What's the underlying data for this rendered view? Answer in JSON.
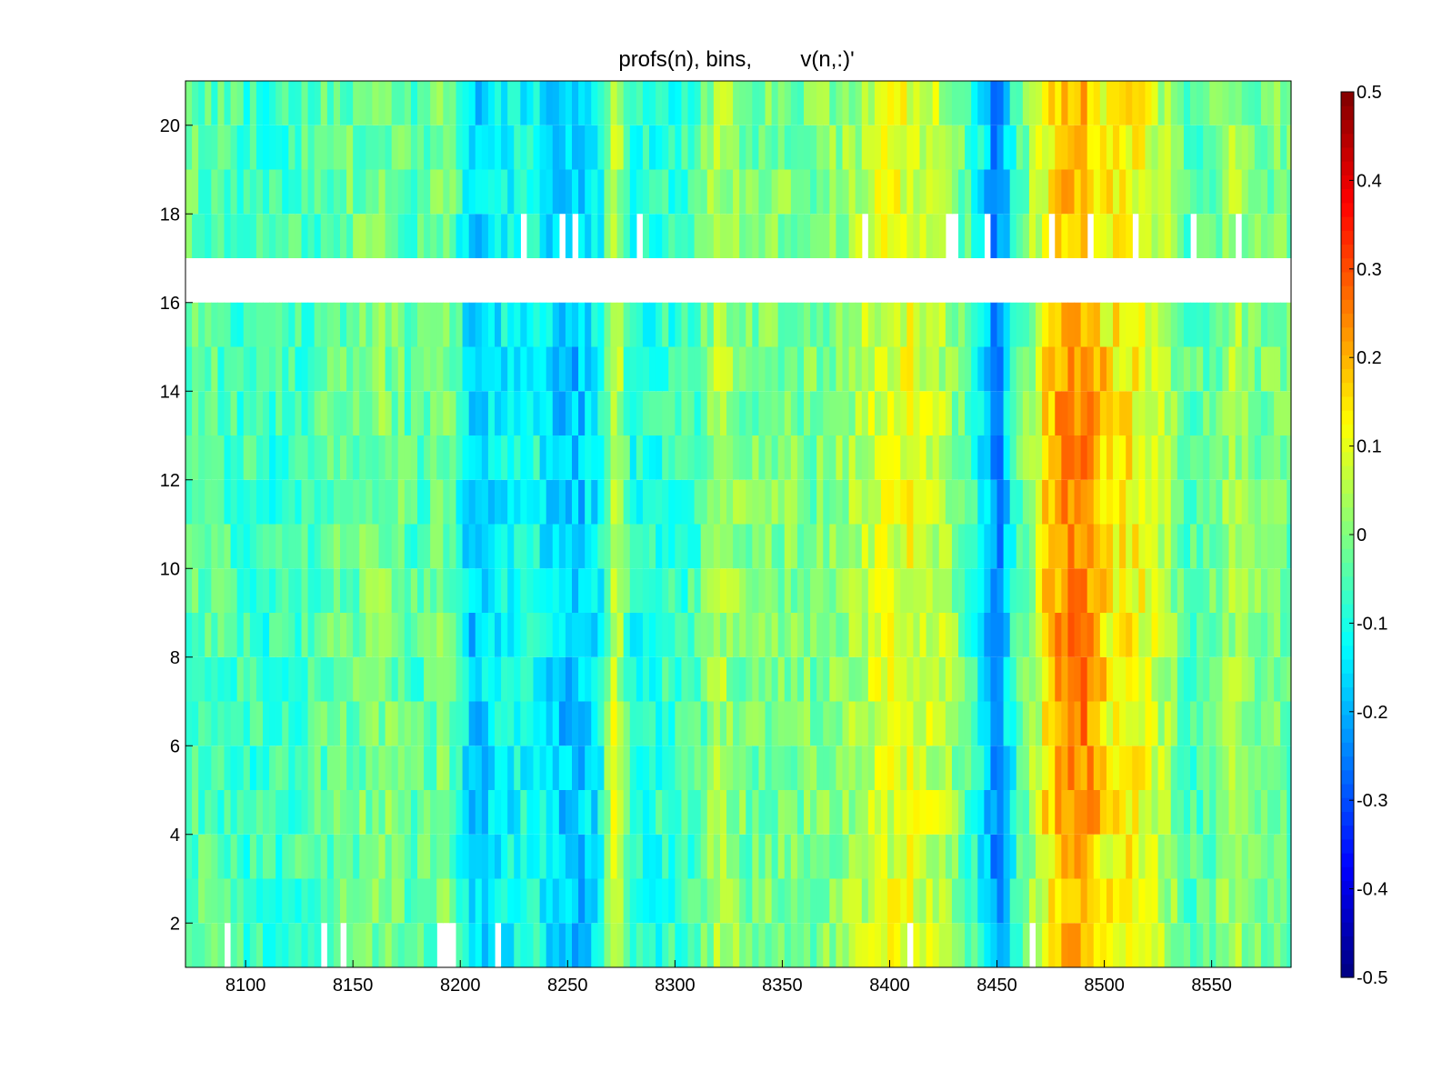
{
  "chart_data": {
    "type": "heatmap",
    "title": "profs(n), bins,        v(n,:)'",
    "xlabel": "",
    "ylabel": "",
    "xlim": [
      8072,
      8587
    ],
    "ylim": [
      1,
      21
    ],
    "x_ticks": [
      8100,
      8150,
      8200,
      8250,
      8300,
      8350,
      8400,
      8450,
      8500,
      8550
    ],
    "y_ticks": [
      2,
      4,
      6,
      8,
      10,
      12,
      14,
      16,
      18,
      20
    ],
    "row_values": [
      1,
      2,
      3,
      4,
      5,
      6,
      7,
      8,
      9,
      10,
      11,
      12,
      13,
      14,
      15,
      16,
      17,
      18,
      19,
      20
    ],
    "missing_rows": [
      16
    ],
    "colorbar": {
      "colormap": "jet",
      "clim": [
        -0.5,
        0.5
      ],
      "ticks": [
        -0.5,
        -0.4,
        -0.3,
        -0.2,
        -0.1,
        0,
        0.1,
        0.2,
        0.3,
        0.4,
        0.5
      ]
    },
    "approx_column_values": [
      {
        "x": 8072,
        "v": -0.03
      },
      {
        "x": 8090,
        "v": -0.05
      },
      {
        "x": 8110,
        "v": -0.08
      },
      {
        "x": 8130,
        "v": -0.05
      },
      {
        "x": 8150,
        "v": -0.02
      },
      {
        "x": 8165,
        "v": 0.0
      },
      {
        "x": 8180,
        "v": -0.05
      },
      {
        "x": 8195,
        "v": 0.0
      },
      {
        "x": 8205,
        "v": -0.18
      },
      {
        "x": 8215,
        "v": -0.14
      },
      {
        "x": 8225,
        "v": -0.12
      },
      {
        "x": 8235,
        "v": -0.1
      },
      {
        "x": 8245,
        "v": -0.17
      },
      {
        "x": 8255,
        "v": -0.19
      },
      {
        "x": 8265,
        "v": -0.12
      },
      {
        "x": 8272,
        "v": 0.1
      },
      {
        "x": 8280,
        "v": -0.1
      },
      {
        "x": 8295,
        "v": -0.08
      },
      {
        "x": 8310,
        "v": -0.06
      },
      {
        "x": 8320,
        "v": 0.05
      },
      {
        "x": 8335,
        "v": -0.02
      },
      {
        "x": 8350,
        "v": 0.0
      },
      {
        "x": 8365,
        "v": -0.01
      },
      {
        "x": 8380,
        "v": 0.02
      },
      {
        "x": 8395,
        "v": 0.08
      },
      {
        "x": 8410,
        "v": 0.1
      },
      {
        "x": 8425,
        "v": 0.05
      },
      {
        "x": 8440,
        "v": -0.08
      },
      {
        "x": 8450,
        "v": -0.25
      },
      {
        "x": 8460,
        "v": -0.05
      },
      {
        "x": 8470,
        "v": 0.08
      },
      {
        "x": 8480,
        "v": 0.18
      },
      {
        "x": 8490,
        "v": 0.2
      },
      {
        "x": 8500,
        "v": 0.12
      },
      {
        "x": 8510,
        "v": 0.14
      },
      {
        "x": 8520,
        "v": 0.1
      },
      {
        "x": 8530,
        "v": 0.03
      },
      {
        "x": 8540,
        "v": -0.05
      },
      {
        "x": 8550,
        "v": -0.03
      },
      {
        "x": 8560,
        "v": 0.04
      },
      {
        "x": 8570,
        "v": 0.0
      },
      {
        "x": 8587,
        "v": -0.02
      }
    ],
    "grid": false,
    "legend": "colorbar-right"
  }
}
